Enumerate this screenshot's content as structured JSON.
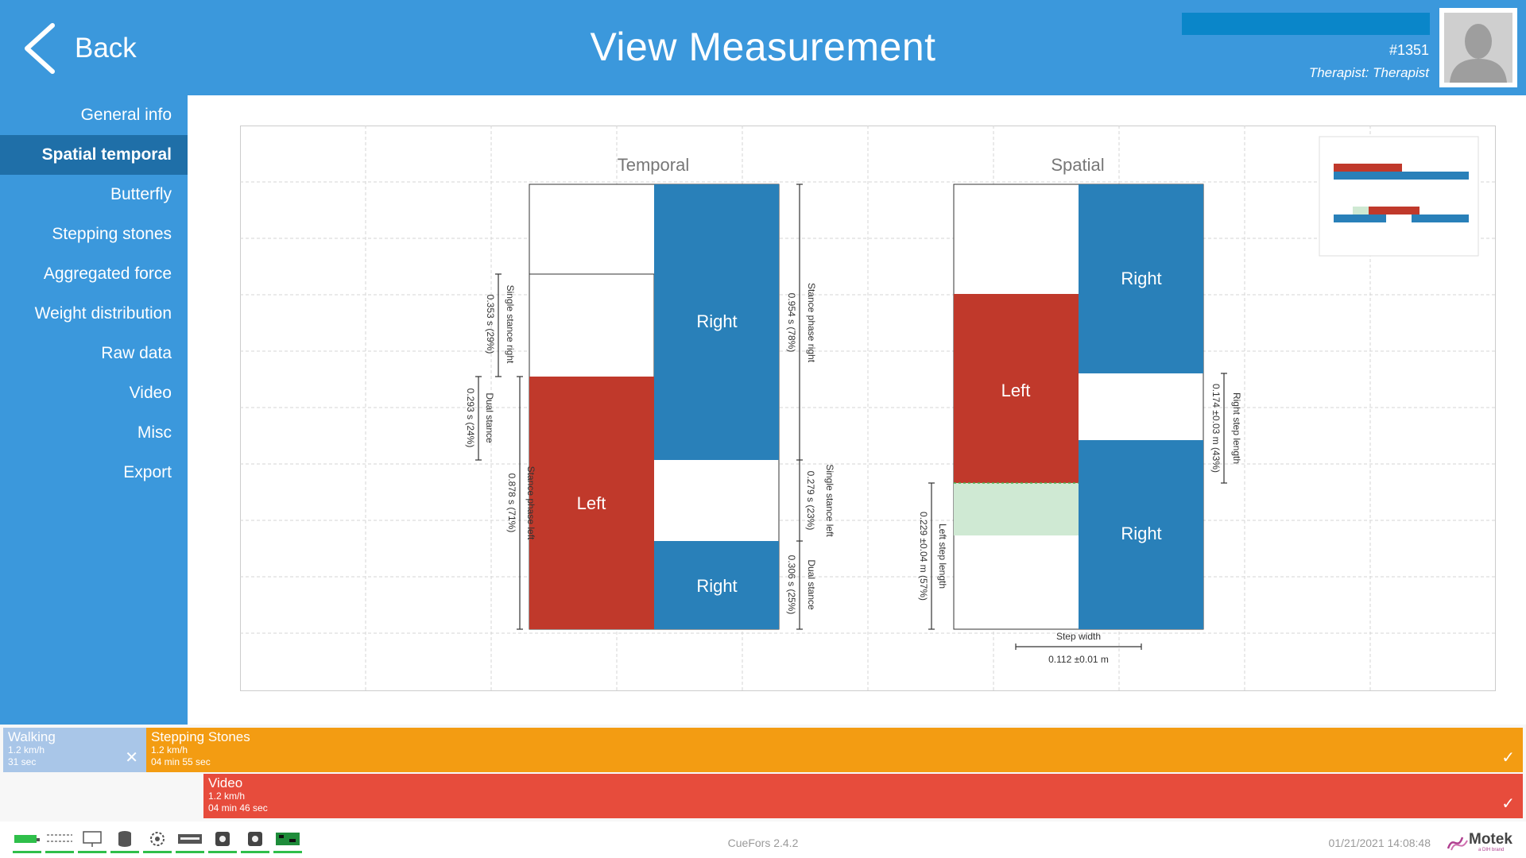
{
  "header": {
    "back_label": "Back",
    "title": "View Measurement",
    "patient_id": "#1351",
    "therapist": "Therapist: Therapist",
    "bar_color": "#3b98dc"
  },
  "sidebar": {
    "items": [
      {
        "label": "General info"
      },
      {
        "label": "Spatial temporal",
        "active": true
      },
      {
        "label": "Butterfly"
      },
      {
        "label": "Stepping stones"
      },
      {
        "label": "Aggregated force"
      },
      {
        "label": "Weight distribution"
      },
      {
        "label": "Raw data"
      },
      {
        "label": "Video"
      },
      {
        "label": "Misc"
      },
      {
        "label": "Export"
      }
    ]
  },
  "chart_data": [
    {
      "type": "bar",
      "title": "Temporal",
      "blocks": [
        {
          "label": "Left",
          "color": "#c0392b"
        },
        {
          "label": "Right",
          "color": "#2980b9"
        },
        {
          "label": "Right",
          "color": "#2980b9"
        }
      ],
      "annotations": {
        "single_stance_right": {
          "name": "Single stance right",
          "value": "0.353 s (29%)"
        },
        "dual_stance_left": {
          "name": "Dual stance",
          "value": "0.293 s (24%)"
        },
        "stance_phase_left": {
          "name": "Stance phase left",
          "value": "0.878 s (71%)"
        },
        "stance_phase_right": {
          "name": "Stance phase right",
          "value": "0.954 s (78%)"
        },
        "single_stance_left": {
          "name": "Single stance left",
          "value": "0.279 s (23%)"
        },
        "dual_stance_right": {
          "name": "Dual stance",
          "value": "0.306 s (25%)"
        }
      }
    },
    {
      "type": "bar",
      "title": "Spatial",
      "blocks": [
        {
          "label": "Left",
          "color": "#c0392b"
        },
        {
          "label": "Right",
          "color": "#2980b9"
        },
        {
          "label": "Right",
          "color": "#2980b9"
        }
      ],
      "annotations": {
        "right_step_length": {
          "name": "Right step length",
          "value": "0.174 ±0.03 m (43%)"
        },
        "left_step_length": {
          "name": "Left step length",
          "value": "0.229 ±0.04 m (57%)"
        },
        "step_width": {
          "name": "Step width",
          "value": "0.112 ±0.01 m"
        }
      }
    }
  ],
  "timeline": {
    "walking": {
      "name": "Walking",
      "speed": "1.2 km/h",
      "duration": "31 sec",
      "color": "#a9c6e8",
      "mark": "✕"
    },
    "stepping": {
      "name": "Stepping Stones",
      "speed": "1.2 km/h",
      "duration": "04 min 55 sec",
      "color": "#f39c12",
      "mark": "✓"
    },
    "video": {
      "name": "Video",
      "speed": "1.2 km/h",
      "duration": "04 min 46 sec",
      "color": "#e74c3c",
      "mark": "✓"
    }
  },
  "footer": {
    "icons": [
      "treadmill-icon",
      "network-icon",
      "monitor-icon",
      "database-icon",
      "settings-icon",
      "recorder-icon",
      "camera-icon",
      "camera-icon",
      "board-icon"
    ],
    "version": "CueFors 2.4.2",
    "datetime": "01/21/2021 14:08:48",
    "logo_text": "Motek",
    "logo_sub": "a DIH brand",
    "status_color": "#2fbf4a"
  }
}
